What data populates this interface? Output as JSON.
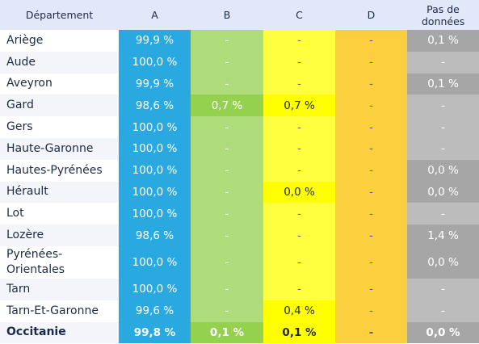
{
  "headers": [
    "Département",
    "A",
    "B",
    "C",
    "D",
    "Pas de données"
  ],
  "colors": {
    "A": "#2aa9e0",
    "B": "#93d14f",
    "C": "#ffff00",
    "D": "#fcc000",
    "none": "#a6a6a6",
    "header": "#e0e8fa"
  },
  "rows": [
    {
      "dept": "Ariège",
      "a": "99,9 %",
      "b": "-",
      "c": "-",
      "d": "-",
      "n": "0,1 %"
    },
    {
      "dept": "Aude",
      "a": "100,0 %",
      "b": "-",
      "c": "-",
      "d": "-",
      "n": "-"
    },
    {
      "dept": "Aveyron",
      "a": "99,9 %",
      "b": "-",
      "c": "-",
      "d": "-",
      "n": "0,1 %"
    },
    {
      "dept": "Gard",
      "a": "98,6 %",
      "b": "0,7 %",
      "c": "0,7 %",
      "d": "-",
      "n": "-"
    },
    {
      "dept": "Gers",
      "a": "100,0 %",
      "b": "-",
      "c": "-",
      "d": "-",
      "n": "-"
    },
    {
      "dept": "Haute-Garonne",
      "a": "100,0 %",
      "b": "-",
      "c": "-",
      "d": "-",
      "n": "-"
    },
    {
      "dept": "Hautes-Pyrénées",
      "a": "100,0 %",
      "b": "-",
      "c": "-",
      "d": "-",
      "n": "0,0 %"
    },
    {
      "dept": "Hérault",
      "a": "100,0 %",
      "b": "-",
      "c": "0,0 %",
      "d": "-",
      "n": "0,0 %"
    },
    {
      "dept": "Lot",
      "a": "100,0 %",
      "b": "-",
      "c": "-",
      "d": "-",
      "n": "-"
    },
    {
      "dept": "Lozère",
      "a": "98,6 %",
      "b": "-",
      "c": "-",
      "d": "-",
      "n": "1,4 %"
    },
    {
      "dept": "Pyrénées-\nOrientales",
      "a": "100,0 %",
      "b": "-",
      "c": "-",
      "d": "-",
      "n": "0,0 %"
    },
    {
      "dept": "Tarn",
      "a": "100,0 %",
      "b": "-",
      "c": "-",
      "d": "-",
      "n": "-"
    },
    {
      "dept": "Tarn-Et-Garonne",
      "a": "99,6 %",
      "b": "-",
      "c": "0,4 %",
      "d": "-",
      "n": "-"
    },
    {
      "dept": "Occitanie",
      "a": "99,8 %",
      "b": "0,1 %",
      "c": "0,1 %",
      "d": "-",
      "n": "0,0 %"
    }
  ]
}
